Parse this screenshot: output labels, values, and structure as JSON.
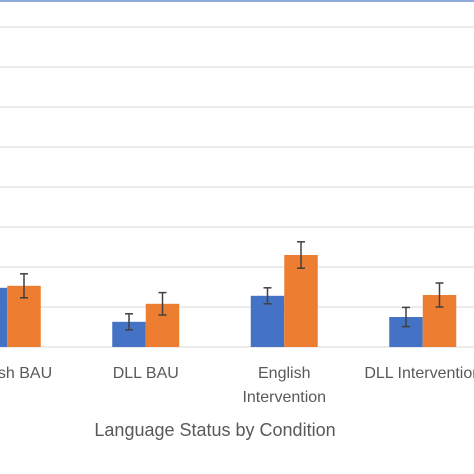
{
  "chart_data": {
    "type": "bar",
    "x_label": "Language Status by Condition",
    "categories": [
      "English BAU",
      "DLL BAU",
      "English Intervention",
      "DLL Intervention"
    ],
    "series": [
      {
        "color": "#4472c4",
        "values": [
          1.48,
          0.63,
          1.28,
          0.75
        ],
        "errors": [
          0.3,
          0.2,
          0.2,
          0.24
        ]
      },
      {
        "color": "#ed7d31",
        "values": [
          1.53,
          1.08,
          2.3,
          1.3
        ],
        "errors": [
          0.3,
          0.28,
          0.33,
          0.3
        ]
      }
    ],
    "ylim": [
      0,
      8.675
    ],
    "yticks": [
      0,
      1,
      2,
      3,
      4,
      5,
      6,
      7,
      8
    ],
    "grid": true
  }
}
